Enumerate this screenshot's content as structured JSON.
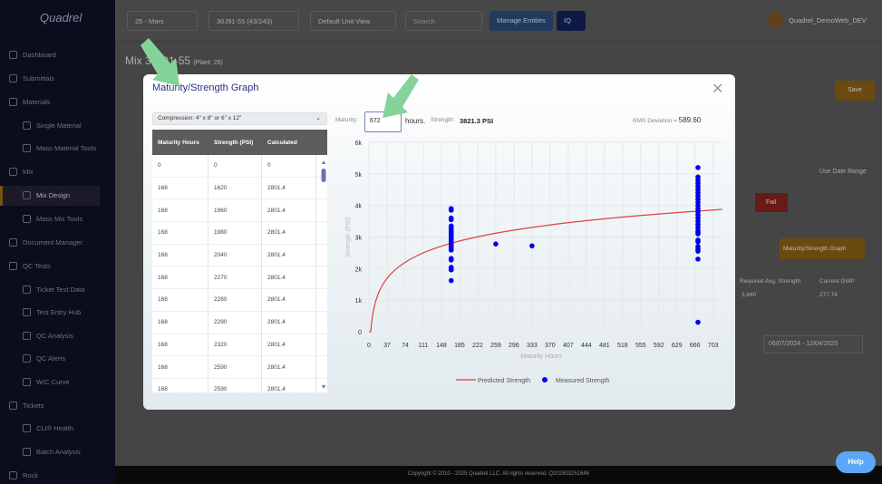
{
  "sidebar": {
    "logo": "Quadrel",
    "items": [
      {
        "label": "Dashboard",
        "sub": false
      },
      {
        "label": "Submittals",
        "sub": false
      },
      {
        "label": "Materials",
        "sub": false
      },
      {
        "label": "Single Material",
        "sub": true
      },
      {
        "label": "Mass Material Tools",
        "sub": true
      },
      {
        "label": "Mix",
        "sub": false
      },
      {
        "label": "Mix Design",
        "sub": true
      },
      {
        "label": "Mass Mix Tools",
        "sub": true
      },
      {
        "label": "Document Manager",
        "sub": false
      },
      {
        "label": "QC Tests",
        "sub": false
      },
      {
        "label": "Ticket Test Data",
        "sub": true
      },
      {
        "label": "Test Entry Hub",
        "sub": true
      },
      {
        "label": "QC Analysis",
        "sub": true
      },
      {
        "label": "QC Alerts",
        "sub": true
      },
      {
        "label": "W/C Curve",
        "sub": true
      },
      {
        "label": "Tickets",
        "sub": false
      },
      {
        "label": "CLI® Health",
        "sub": true
      },
      {
        "label": "Batch Analysis",
        "sub": true
      },
      {
        "label": "Rock",
        "sub": false
      }
    ]
  },
  "topbar": {
    "plant": "25 - Mars",
    "mix": "30J91-55 (43/243)",
    "unit_view": "Default Unit View",
    "search_placeholder": "Search",
    "manage": "Manage Entities",
    "iq": "IQ",
    "user": "Quadrel_DemoWeb_DEV"
  },
  "page": {
    "title": "Mix 30J91-55",
    "plant": "(Plant: 25)",
    "save": "Save",
    "use_date_range": "Use Date Range",
    "fail": "Fail",
    "msg_button": "Maturity/Strength Graph",
    "req_avg_label": "Required Avg. Strength",
    "req_avg": "3,840",
    "gwp_label": "Current GWP",
    "gwp": "277.74",
    "date_range": "06/07/2024 - 12/04/2025",
    "footer": "Copyright © 2010 - 2025 Quadrel LLC. All rights reserved. Q202503251646",
    "help": "Help"
  },
  "modal": {
    "title": "Maturity/Strength Graph",
    "select": "Compression: 4\" x 8\" or 6\" x 12\"",
    "maturity_label": "Maturity:",
    "maturity_value": "672",
    "hours": "hours.",
    "strength_label": "Strength:",
    "strength_value": "3821.3 PSI",
    "rms": "RMS Deviation =",
    "rms_value": "589.60",
    "table": {
      "headers": [
        "Maturity Hours",
        "Strength (PSI)",
        "Calculated"
      ],
      "rows": [
        [
          "0",
          "0",
          "0"
        ],
        [
          "168",
          "1620",
          "2801.4"
        ],
        [
          "168",
          "1960",
          "2801.4"
        ],
        [
          "168",
          "1980",
          "2801.4"
        ],
        [
          "168",
          "2040",
          "2801.4"
        ],
        [
          "168",
          "2270",
          "2801.4"
        ],
        [
          "168",
          "2280",
          "2801.4"
        ],
        [
          "168",
          "2290",
          "2801.4"
        ],
        [
          "168",
          "2320",
          "2801.4"
        ],
        [
          "168",
          "2590",
          "2801.4"
        ],
        [
          "168",
          "2590",
          "2801.4"
        ]
      ]
    }
  },
  "chart_data": {
    "type": "scatter",
    "xlabel": "Maturity Hours",
    "ylabel": "Strength (PSI)",
    "xlim": [
      0,
      722
    ],
    "ylim": [
      0,
      6000
    ],
    "xticks": [
      "0",
      "37",
      "74",
      "111",
      "148",
      "185",
      "222",
      "259",
      "296",
      "333",
      "370",
      "407",
      "444",
      "481",
      "518",
      "555",
      "592",
      "629",
      "666",
      "703"
    ],
    "yticks": [
      "0",
      "1k",
      "2k",
      "3k",
      "4k",
      "5k",
      "6k"
    ],
    "legend": [
      "Predicted Strength",
      "Measured Strength"
    ],
    "colors": {
      "predicted": "#e04040",
      "measured": "#0000ee"
    },
    "predicted": {
      "model": "log",
      "a": -968,
      "b": 735.7
    },
    "measured": [
      [
        168,
        1620
      ],
      [
        168,
        1960
      ],
      [
        168,
        1980
      ],
      [
        168,
        2040
      ],
      [
        168,
        2270
      ],
      [
        168,
        2280
      ],
      [
        168,
        2290
      ],
      [
        168,
        2320
      ],
      [
        168,
        2590
      ],
      [
        168,
        2590
      ],
      [
        168,
        2650
      ],
      [
        168,
        2700
      ],
      [
        168,
        2750
      ],
      [
        168,
        2800
      ],
      [
        168,
        2850
      ],
      [
        168,
        2900
      ],
      [
        168,
        2950
      ],
      [
        168,
        3000
      ],
      [
        168,
        3050
      ],
      [
        168,
        3100
      ],
      [
        168,
        3150
      ],
      [
        168,
        3200
      ],
      [
        168,
        3250
      ],
      [
        168,
        3300
      ],
      [
        168,
        3350
      ],
      [
        168,
        3550
      ],
      [
        168,
        3600
      ],
      [
        168,
        3850
      ],
      [
        168,
        3900
      ],
      [
        259,
        2780
      ],
      [
        333,
        2720
      ],
      [
        672,
        300
      ],
      [
        672,
        2300
      ],
      [
        672,
        2550
      ],
      [
        672,
        2620
      ],
      [
        672,
        2700
      ],
      [
        672,
        2850
      ],
      [
        672,
        2900
      ],
      [
        672,
        3100
      ],
      [
        672,
        3150
      ],
      [
        672,
        3200
      ],
      [
        672,
        3300
      ],
      [
        672,
        3400
      ],
      [
        672,
        3500
      ],
      [
        672,
        3600
      ],
      [
        672,
        3700
      ],
      [
        672,
        3800
      ],
      [
        672,
        3900
      ],
      [
        672,
        4000
      ],
      [
        672,
        4100
      ],
      [
        672,
        4200
      ],
      [
        672,
        4300
      ],
      [
        672,
        4400
      ],
      [
        672,
        4500
      ],
      [
        672,
        4600
      ],
      [
        672,
        4700
      ],
      [
        672,
        4800
      ],
      [
        672,
        4900
      ],
      [
        672,
        5200
      ]
    ]
  }
}
